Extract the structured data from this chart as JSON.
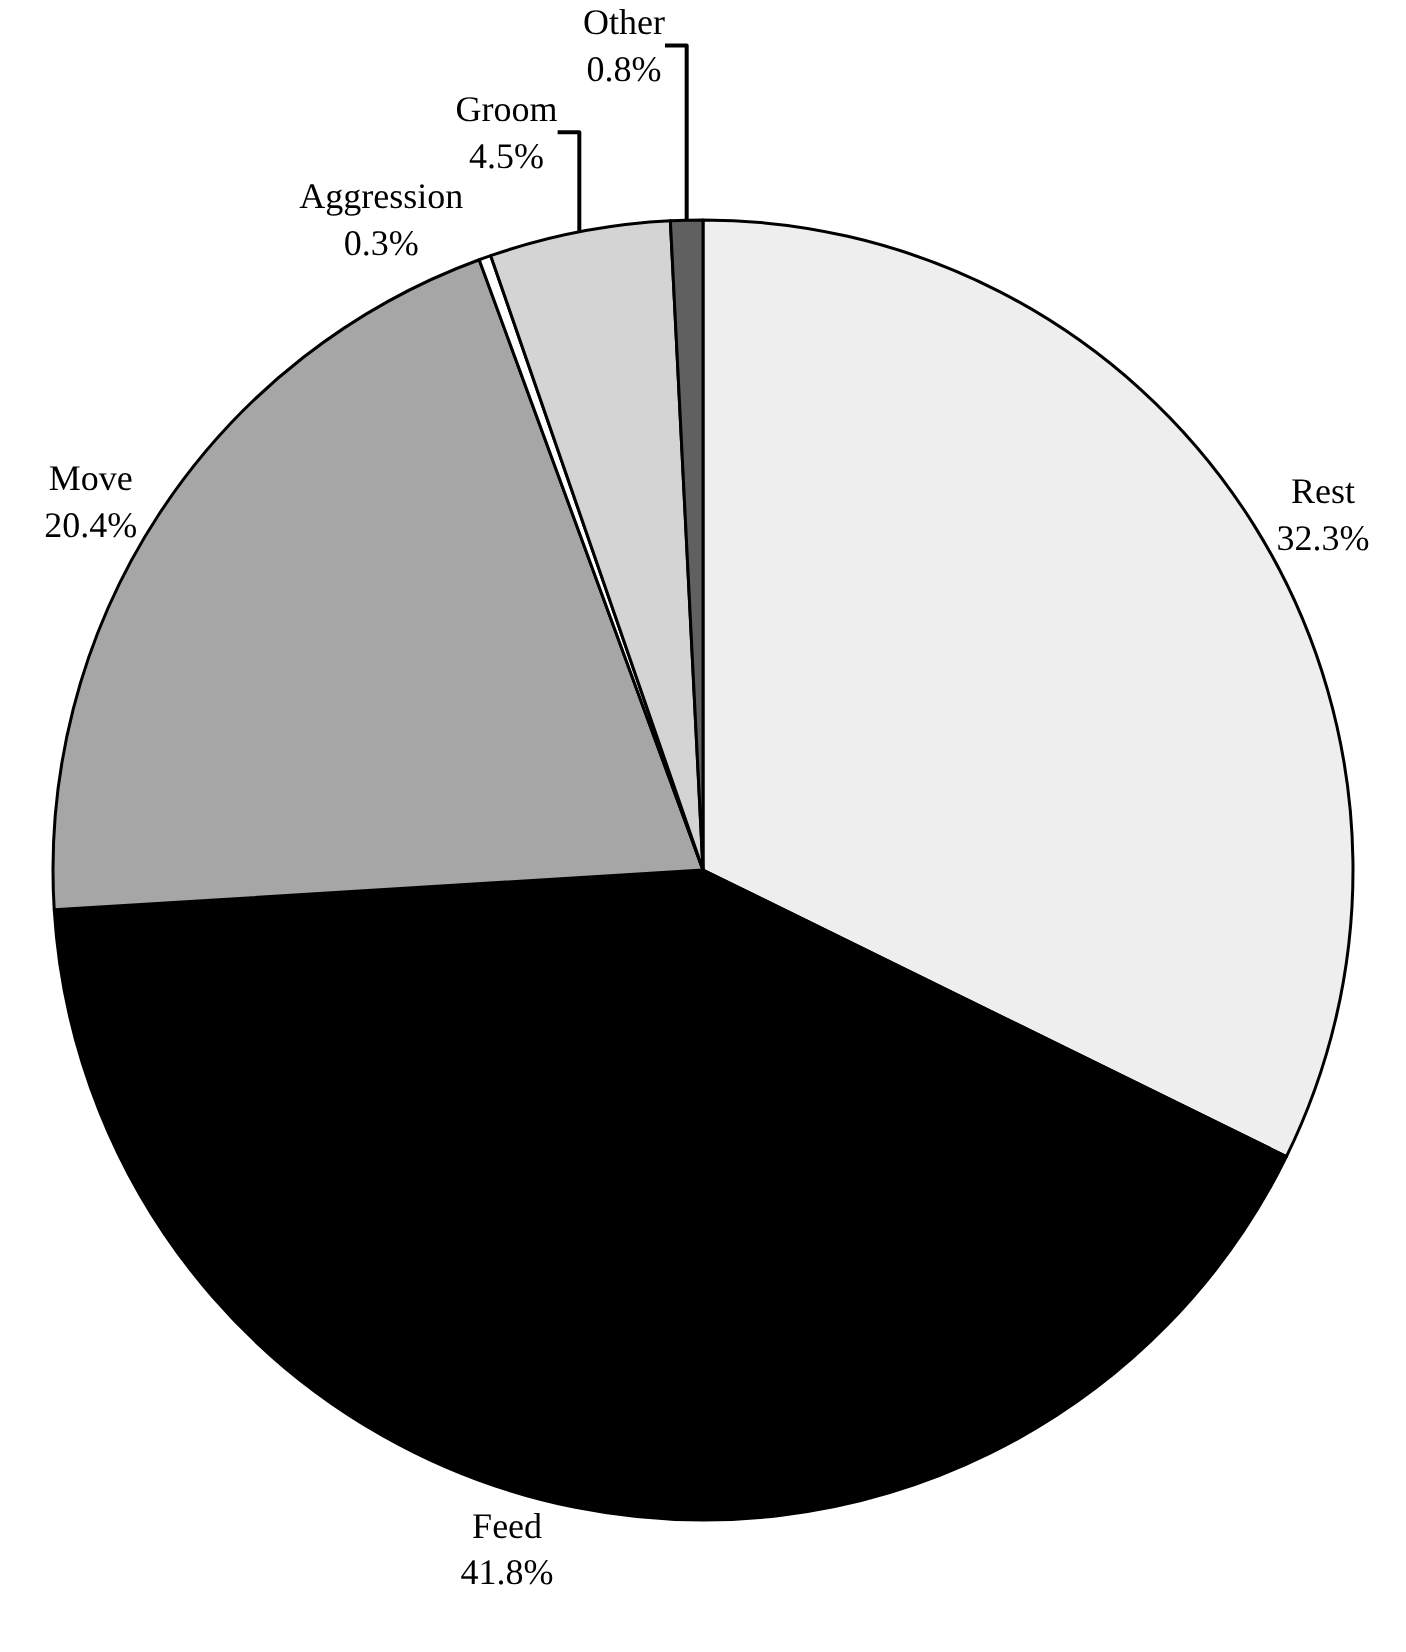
{
  "chart_data": {
    "type": "pie",
    "categories": [
      "Rest",
      "Feed",
      "Move",
      "Aggression",
      "Groom",
      "Other"
    ],
    "values": [
      32.3,
      41.8,
      20.4,
      0.3,
      4.5,
      0.8
    ],
    "value_labels": [
      "32.3%",
      "41.8%",
      "20.4%",
      "0.3%",
      "4.5%",
      "0.8%"
    ],
    "colors": [
      "#eeeeee",
      "#000000",
      "#a6a6a6",
      "#ffffff",
      "#d4d4d4",
      "#606060"
    ],
    "legend": false
  }
}
